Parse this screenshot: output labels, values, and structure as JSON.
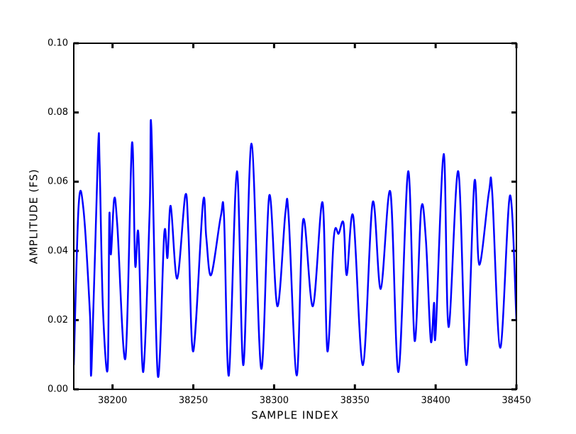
{
  "chart_data": {
    "type": "line",
    "xlabel": "SAMPLE INDEX",
    "ylabel": "AMPLITUDE (FS)",
    "x": [
      38176,
      38179,
      38182,
      38186,
      38187,
      38191,
      38192,
      38194,
      38197,
      38198,
      38199,
      38201,
      38203,
      38208,
      38212,
      38214,
      38216,
      38219,
      38223,
      38224,
      38228,
      38232,
      38234,
      38236,
      38240,
      38245,
      38247,
      38250,
      38256,
      38258,
      38261,
      38267,
      38269,
      38272,
      38277,
      38281,
      38286,
      38292,
      38297,
      38302,
      38307,
      38309,
      38314,
      38318,
      38324,
      38330,
      38333,
      38337,
      38340,
      38343,
      38345,
      38349,
      38355,
      38361,
      38366,
      38372,
      38377,
      38383,
      38387,
      38391,
      38394,
      38397,
      38399,
      38400,
      38405,
      38408,
      38414,
      38419,
      38424,
      38427,
      38433,
      38435,
      38440,
      38446,
      38450
    ],
    "series": [
      {
        "color": "#0000ff",
        "values": [
          0.007,
          0.053,
          0.052,
          0.022,
          0.006,
          0.069,
          0.065,
          0.024,
          0.006,
          0.05,
          0.039,
          0.055,
          0.047,
          0.009,
          0.071,
          0.036,
          0.045,
          0.005,
          0.052,
          0.076,
          0.004,
          0.045,
          0.038,
          0.053,
          0.032,
          0.056,
          0.045,
          0.011,
          0.054,
          0.044,
          0.033,
          0.05,
          0.05,
          0.004,
          0.063,
          0.007,
          0.071,
          0.006,
          0.056,
          0.024,
          0.051,
          0.05,
          0.004,
          0.049,
          0.024,
          0.054,
          0.011,
          0.044,
          0.045,
          0.048,
          0.033,
          0.05,
          0.007,
          0.054,
          0.029,
          0.057,
          0.005,
          0.063,
          0.014,
          0.052,
          0.043,
          0.014,
          0.025,
          0.016,
          0.068,
          0.018,
          0.063,
          0.007,
          0.06,
          0.036,
          0.057,
          0.057,
          0.012,
          0.056,
          0.02
        ]
      }
    ],
    "xlim": [
      38176,
      38450
    ],
    "ylim": [
      0,
      0.1
    ],
    "xticks": [
      38200,
      38250,
      38300,
      38350,
      38400,
      38450
    ],
    "yticks": [
      {
        "value": 0,
        "label": "0.00"
      },
      {
        "value": 0.02,
        "label": "0.02"
      },
      {
        "value": 0.04,
        "label": "0.04"
      },
      {
        "value": 0.06,
        "label": "0.06"
      },
      {
        "value": 0.08,
        "label": "0.08"
      },
      {
        "value": 0.1,
        "label": "0.10"
      }
    ]
  }
}
